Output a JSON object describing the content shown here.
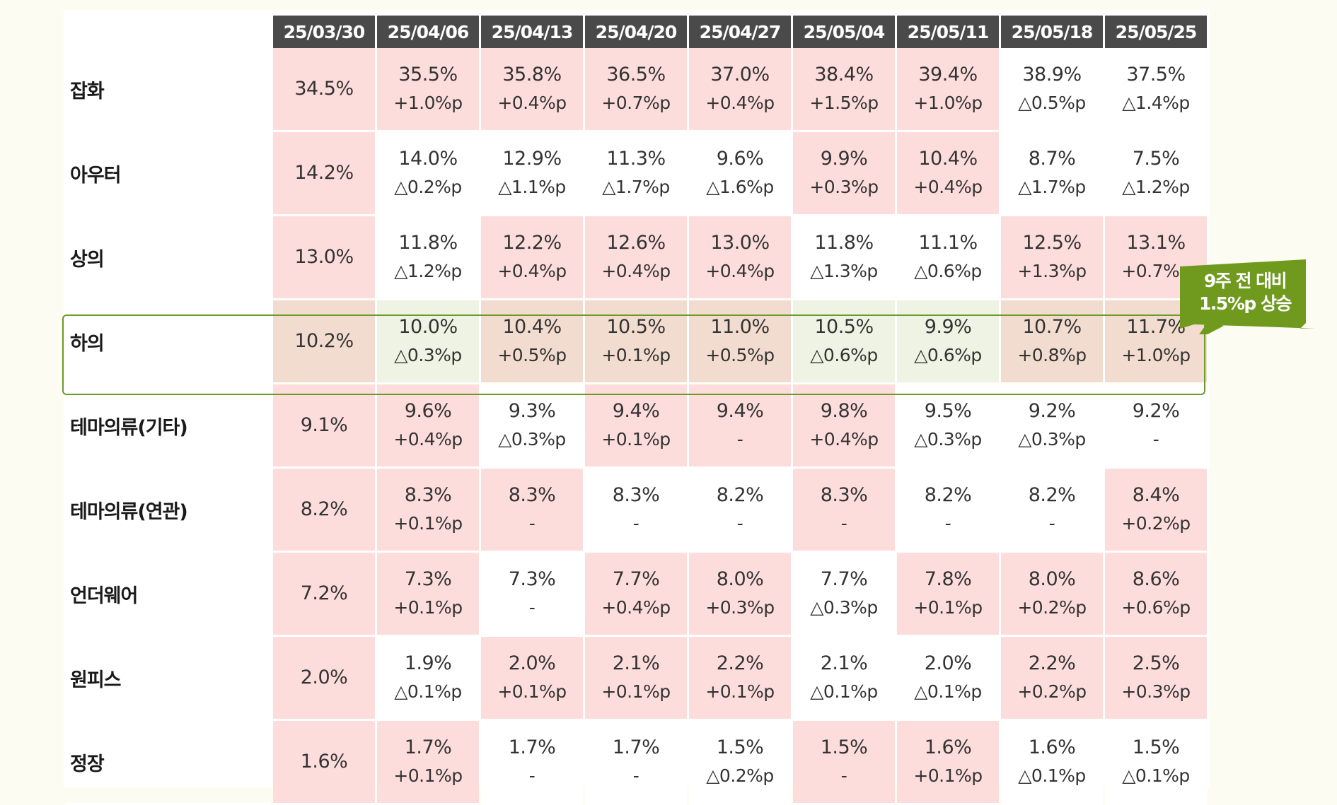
{
  "chart_data": {
    "type": "table",
    "columns": [
      "25/03/30",
      "25/04/06",
      "25/04/13",
      "25/04/20",
      "25/04/27",
      "25/05/04",
      "25/05/11",
      "25/05/18",
      "25/05/25"
    ],
    "rows": [
      {
        "label": "잡화",
        "cells": [
          {
            "value": "34.5%",
            "change": "",
            "highlight": true
          },
          {
            "value": "35.5%",
            "change": "+1.0%p",
            "highlight": true
          },
          {
            "value": "35.8%",
            "change": "+0.4%p",
            "highlight": true
          },
          {
            "value": "36.5%",
            "change": "+0.7%p",
            "highlight": true
          },
          {
            "value": "37.0%",
            "change": "+0.4%p",
            "highlight": true
          },
          {
            "value": "38.4%",
            "change": "+1.5%p",
            "highlight": true
          },
          {
            "value": "39.4%",
            "change": "+1.0%p",
            "highlight": true
          },
          {
            "value": "38.9%",
            "change": "△0.5%p",
            "highlight": false
          },
          {
            "value": "37.5%",
            "change": "△1.4%p",
            "highlight": false
          }
        ]
      },
      {
        "label": "아우터",
        "cells": [
          {
            "value": "14.2%",
            "change": "",
            "highlight": true
          },
          {
            "value": "14.0%",
            "change": "△0.2%p",
            "highlight": false
          },
          {
            "value": "12.9%",
            "change": "△1.1%p",
            "highlight": false
          },
          {
            "value": "11.3%",
            "change": "△1.7%p",
            "highlight": false
          },
          {
            "value": "9.6%",
            "change": "△1.6%p",
            "highlight": false
          },
          {
            "value": "9.9%",
            "change": "+0.3%p",
            "highlight": true
          },
          {
            "value": "10.4%",
            "change": "+0.4%p",
            "highlight": true
          },
          {
            "value": "8.7%",
            "change": "△1.7%p",
            "highlight": false
          },
          {
            "value": "7.5%",
            "change": "△1.2%p",
            "highlight": false
          }
        ]
      },
      {
        "label": "상의",
        "cells": [
          {
            "value": "13.0%",
            "change": "",
            "highlight": true
          },
          {
            "value": "11.8%",
            "change": "△1.2%p",
            "highlight": false
          },
          {
            "value": "12.2%",
            "change": "+0.4%p",
            "highlight": true
          },
          {
            "value": "12.6%",
            "change": "+0.4%p",
            "highlight": true
          },
          {
            "value": "13.0%",
            "change": "+0.4%p",
            "highlight": true
          },
          {
            "value": "11.8%",
            "change": "△1.3%p",
            "highlight": false
          },
          {
            "value": "11.1%",
            "change": "△0.6%p",
            "highlight": false
          },
          {
            "value": "12.5%",
            "change": "+1.3%p",
            "highlight": true
          },
          {
            "value": "13.1%",
            "change": "+0.7%p",
            "highlight": true
          }
        ]
      },
      {
        "label": "하의",
        "highlighted_row": true,
        "cells": [
          {
            "value": "10.2%",
            "change": "",
            "highlight": true
          },
          {
            "value": "10.0%",
            "change": "△0.3%p",
            "highlight": false
          },
          {
            "value": "10.4%",
            "change": "+0.5%p",
            "highlight": true
          },
          {
            "value": "10.5%",
            "change": "+0.1%p",
            "highlight": true
          },
          {
            "value": "11.0%",
            "change": "+0.5%p",
            "highlight": true
          },
          {
            "value": "10.5%",
            "change": "△0.6%p",
            "highlight": false
          },
          {
            "value": "9.9%",
            "change": "△0.6%p",
            "highlight": false
          },
          {
            "value": "10.7%",
            "change": "+0.8%p",
            "highlight": true
          },
          {
            "value": "11.7%",
            "change": "+1.0%p",
            "highlight": true
          }
        ]
      },
      {
        "label": "테마의류(기타)",
        "cells": [
          {
            "value": "9.1%",
            "change": "",
            "highlight": true
          },
          {
            "value": "9.6%",
            "change": "+0.4%p",
            "highlight": true
          },
          {
            "value": "9.3%",
            "change": "△0.3%p",
            "highlight": false
          },
          {
            "value": "9.4%",
            "change": "+0.1%p",
            "highlight": true
          },
          {
            "value": "9.4%",
            "change": "-",
            "highlight": true
          },
          {
            "value": "9.8%",
            "change": "+0.4%p",
            "highlight": true
          },
          {
            "value": "9.5%",
            "change": "△0.3%p",
            "highlight": false
          },
          {
            "value": "9.2%",
            "change": "△0.3%p",
            "highlight": false
          },
          {
            "value": "9.2%",
            "change": "-",
            "highlight": false
          }
        ]
      },
      {
        "label": "테마의류(연관)",
        "cells": [
          {
            "value": "8.2%",
            "change": "",
            "highlight": true
          },
          {
            "value": "8.3%",
            "change": "+0.1%p",
            "highlight": true
          },
          {
            "value": "8.3%",
            "change": "-",
            "highlight": true
          },
          {
            "value": "8.3%",
            "change": "-",
            "highlight": false
          },
          {
            "value": "8.2%",
            "change": "-",
            "highlight": false
          },
          {
            "value": "8.3%",
            "change": "-",
            "highlight": true
          },
          {
            "value": "8.2%",
            "change": "-",
            "highlight": false
          },
          {
            "value": "8.2%",
            "change": "-",
            "highlight": false
          },
          {
            "value": "8.4%",
            "change": "+0.2%p",
            "highlight": true
          }
        ]
      },
      {
        "label": "언더웨어",
        "cells": [
          {
            "value": "7.2%",
            "change": "",
            "highlight": true
          },
          {
            "value": "7.3%",
            "change": "+0.1%p",
            "highlight": true
          },
          {
            "value": "7.3%",
            "change": "-",
            "highlight": false
          },
          {
            "value": "7.7%",
            "change": "+0.4%p",
            "highlight": true
          },
          {
            "value": "8.0%",
            "change": "+0.3%p",
            "highlight": true
          },
          {
            "value": "7.7%",
            "change": "△0.3%p",
            "highlight": false
          },
          {
            "value": "7.8%",
            "change": "+0.1%p",
            "highlight": true
          },
          {
            "value": "8.0%",
            "change": "+0.2%p",
            "highlight": true
          },
          {
            "value": "8.6%",
            "change": "+0.6%p",
            "highlight": true
          }
        ]
      },
      {
        "label": "원피스",
        "cells": [
          {
            "value": "2.0%",
            "change": "",
            "highlight": true
          },
          {
            "value": "1.9%",
            "change": "△0.1%p",
            "highlight": false
          },
          {
            "value": "2.0%",
            "change": "+0.1%p",
            "highlight": true
          },
          {
            "value": "2.1%",
            "change": "+0.1%p",
            "highlight": true
          },
          {
            "value": "2.2%",
            "change": "+0.1%p",
            "highlight": true
          },
          {
            "value": "2.1%",
            "change": "△0.1%p",
            "highlight": false
          },
          {
            "value": "2.0%",
            "change": "△0.1%p",
            "highlight": false
          },
          {
            "value": "2.2%",
            "change": "+0.2%p",
            "highlight": true
          },
          {
            "value": "2.5%",
            "change": "+0.3%p",
            "highlight": true
          }
        ]
      },
      {
        "label": "정장",
        "cells": [
          {
            "value": "1.6%",
            "change": "",
            "highlight": true
          },
          {
            "value": "1.7%",
            "change": "+0.1%p",
            "highlight": true
          },
          {
            "value": "1.7%",
            "change": "-",
            "highlight": false
          },
          {
            "value": "1.7%",
            "change": "-",
            "highlight": false
          },
          {
            "value": "1.5%",
            "change": "△0.2%p",
            "highlight": false
          },
          {
            "value": "1.5%",
            "change": "-",
            "highlight": true
          },
          {
            "value": "1.6%",
            "change": "+0.1%p",
            "highlight": true
          },
          {
            "value": "1.6%",
            "change": "△0.1%p",
            "highlight": false
          },
          {
            "value": "1.5%",
            "change": "△0.1%p",
            "highlight": false
          }
        ]
      }
    ],
    "annotation": {
      "lines": [
        "9주 전 대비",
        "1.5%p 상승"
      ],
      "target_row": "하의"
    },
    "colors": {
      "header_bg": "#4a4a4a",
      "increase_bg": "#fddcdc",
      "row_highlight": "#6a9a28",
      "callout_bg": "#6f9a1e"
    }
  }
}
